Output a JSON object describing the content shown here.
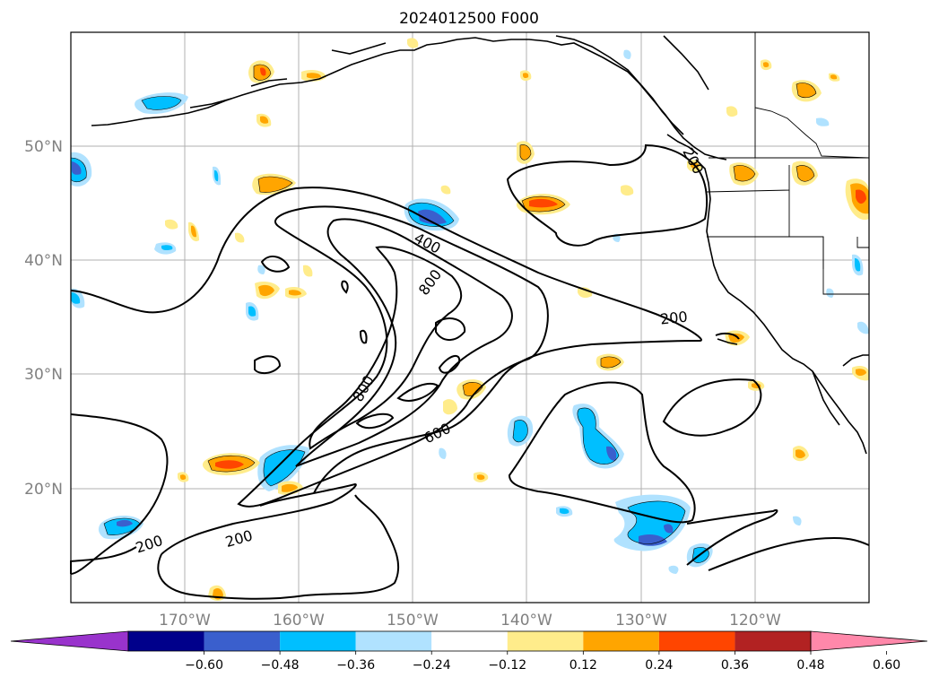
{
  "chart_data": {
    "type": "map",
    "title": "2024012500 F000",
    "lon_ticks": [
      "170°W",
      "160°W",
      "150°W",
      "140°W",
      "130°W",
      "120°W"
    ],
    "lat_ticks": [
      "50°N",
      "40°N",
      "30°N",
      "20°N"
    ],
    "extent": {
      "lon": [
        -180,
        -110
      ],
      "lat": [
        10,
        60
      ]
    },
    "grid": true,
    "colorbar": {
      "orientation": "horizontal",
      "placement": "bottom",
      "extend": "both",
      "levels": [
        -0.6,
        -0.48,
        -0.36,
        -0.24,
        -0.12,
        0.12,
        0.24,
        0.36,
        0.48,
        0.6
      ],
      "tick_labels": [
        "−0.60",
        "−0.48",
        "−0.36",
        "−0.24",
        "−0.12",
        "0.12",
        "0.24",
        "0.36",
        "0.48",
        "0.60"
      ],
      "colors": [
        "#9933cc",
        "#00008b",
        "#3a5fcd",
        "#00bfff",
        "#b0e2ff",
        "#ffffff",
        "#ffec8b",
        "#ffa500",
        "#ff4500",
        "#b22222",
        "#ff88aa"
      ]
    },
    "contour_labels": [
      "200",
      "200",
      "200",
      "200",
      "400",
      "600",
      "800",
      "800"
    ]
  }
}
